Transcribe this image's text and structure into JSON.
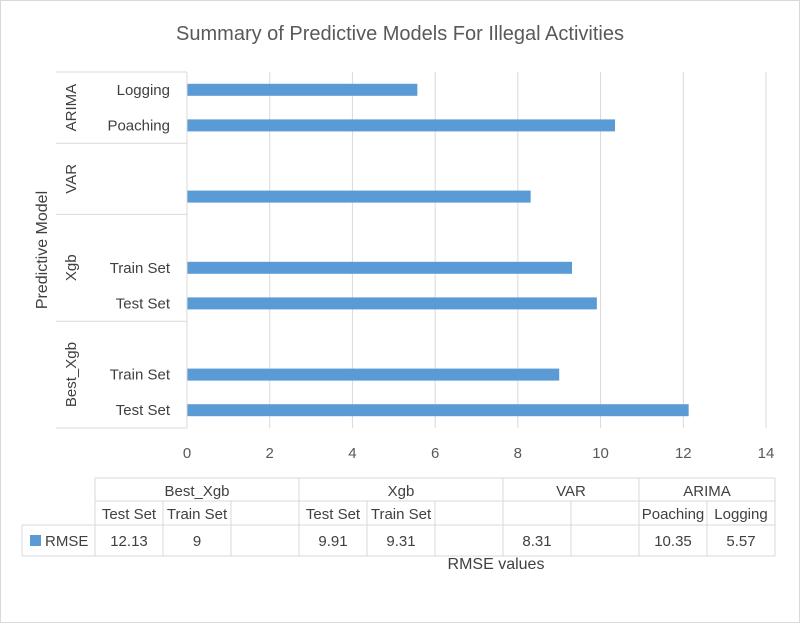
{
  "chart_data": {
    "type": "bar",
    "orientation": "horizontal",
    "title": "Summary of Predictive Models For Illegal Activities",
    "ylabel": "Predictive Model",
    "xlabel": "RMSE values",
    "xlim": [
      0,
      14
    ],
    "xticks": [
      "0",
      "2",
      "4",
      "6",
      "8",
      "10",
      "12",
      "14"
    ],
    "grid": true,
    "legend_position": "in data table",
    "color": "#5b9bd5",
    "groups": [
      {
        "name": "Best_Xgb",
        "categories": [
          "Test Set",
          "Train Set",
          ""
        ]
      },
      {
        "name": "Xgb",
        "categories": [
          "Test Set",
          "Train Set",
          ""
        ]
      },
      {
        "name": "VAR",
        "categories": [
          "",
          ""
        ]
      },
      {
        "name": "ARIMA",
        "categories": [
          "Poaching",
          "Logging"
        ]
      }
    ],
    "series": [
      {
        "name": "RMSE",
        "values": [
          12.13,
          9,
          null,
          9.91,
          9.31,
          null,
          8.31,
          null,
          10.35,
          5.57
        ],
        "labels": [
          "12.13",
          "9",
          "",
          "9.91",
          "9.31",
          "",
          "8.31",
          "",
          "10.35",
          "5.57"
        ]
      }
    ]
  }
}
